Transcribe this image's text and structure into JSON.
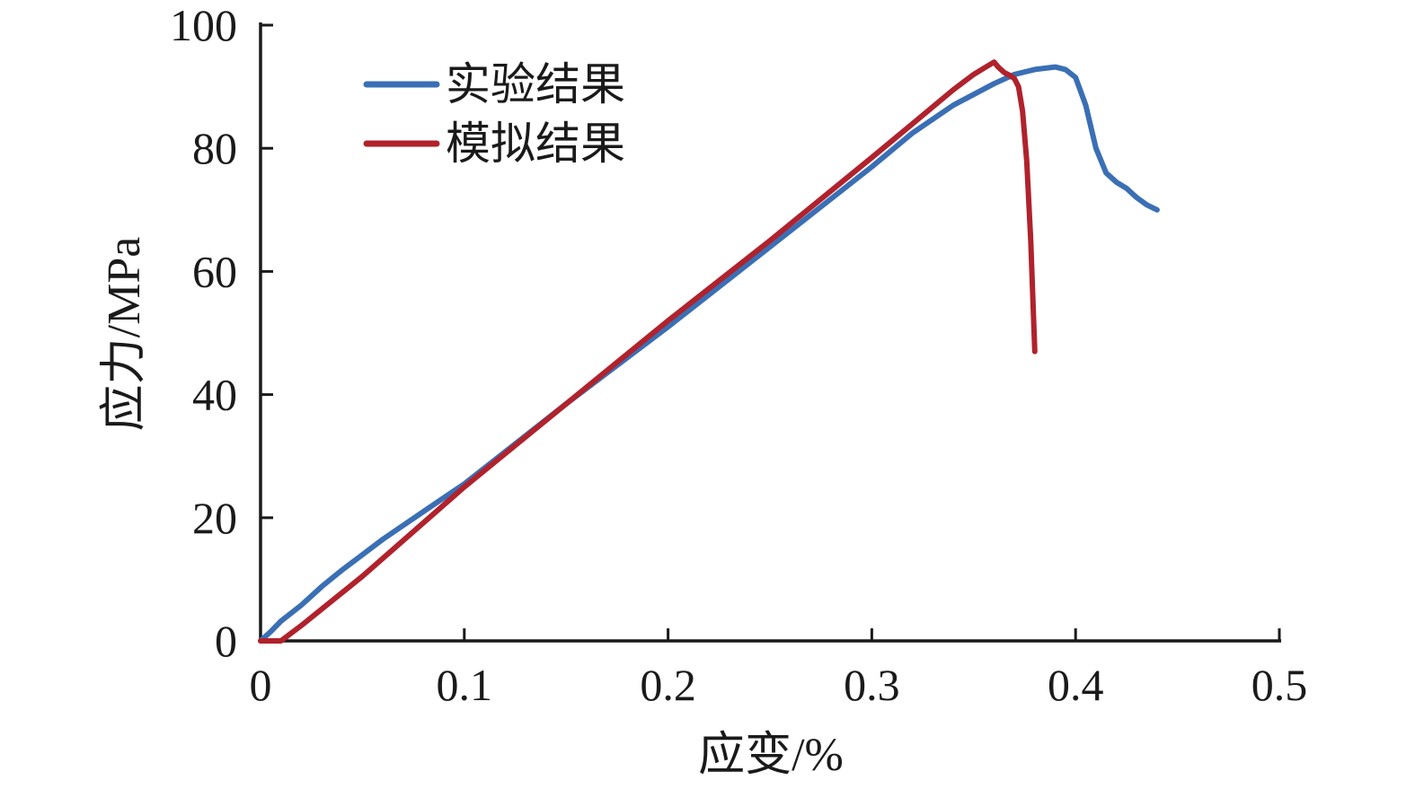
{
  "chart_data": {
    "type": "line",
    "xlabel": "应变/%",
    "ylabel": "应力/MPa",
    "xlim": [
      0,
      0.5
    ],
    "ylim": [
      0,
      100
    ],
    "xticks": [
      0,
      0.1,
      0.2,
      0.3,
      0.4,
      0.5
    ],
    "xtick_labels": [
      "0",
      "0.1",
      "0.2",
      "0.3",
      "0.4",
      "0.5"
    ],
    "yticks": [
      0,
      20,
      40,
      60,
      80,
      100
    ],
    "ytick_labels": [
      "0",
      "20",
      "40",
      "60",
      "80",
      "100"
    ],
    "grid": false,
    "legend_position": "top-left",
    "series": [
      {
        "name": "实验结果",
        "color": "#3a6fb5",
        "x": [
          0,
          0.005,
          0.01,
          0.02,
          0.03,
          0.04,
          0.05,
          0.06,
          0.08,
          0.1,
          0.15,
          0.2,
          0.25,
          0.3,
          0.32,
          0.34,
          0.36,
          0.37,
          0.38,
          0.39,
          0.395,
          0.4,
          0.405,
          0.41,
          0.415,
          0.42,
          0.425,
          0.43,
          0.435,
          0.44
        ],
        "y": [
          0,
          1.5,
          3.2,
          5.8,
          8.8,
          11.5,
          14,
          16.5,
          21,
          25.5,
          38.5,
          51,
          64,
          77,
          82.5,
          87,
          90.5,
          92,
          92.8,
          93.2,
          92.8,
          91.5,
          87,
          80,
          76,
          74.5,
          73.5,
          72,
          70.8,
          70
        ]
      },
      {
        "name": "模拟结果",
        "color": "#b0222c",
        "x": [
          0,
          0.005,
          0.01,
          0.02,
          0.05,
          0.1,
          0.15,
          0.2,
          0.25,
          0.3,
          0.32,
          0.34,
          0.35,
          0.355,
          0.36,
          0.362,
          0.365,
          0.368,
          0.37,
          0.372,
          0.374,
          0.376,
          0.378,
          0.38
        ],
        "y": [
          0,
          0,
          0,
          2.5,
          10.5,
          25,
          38.5,
          52,
          65,
          78.5,
          84,
          89.5,
          92,
          93,
          94,
          93.2,
          92.3,
          91.8,
          91.3,
          90,
          86,
          78,
          65,
          47
        ]
      }
    ]
  }
}
